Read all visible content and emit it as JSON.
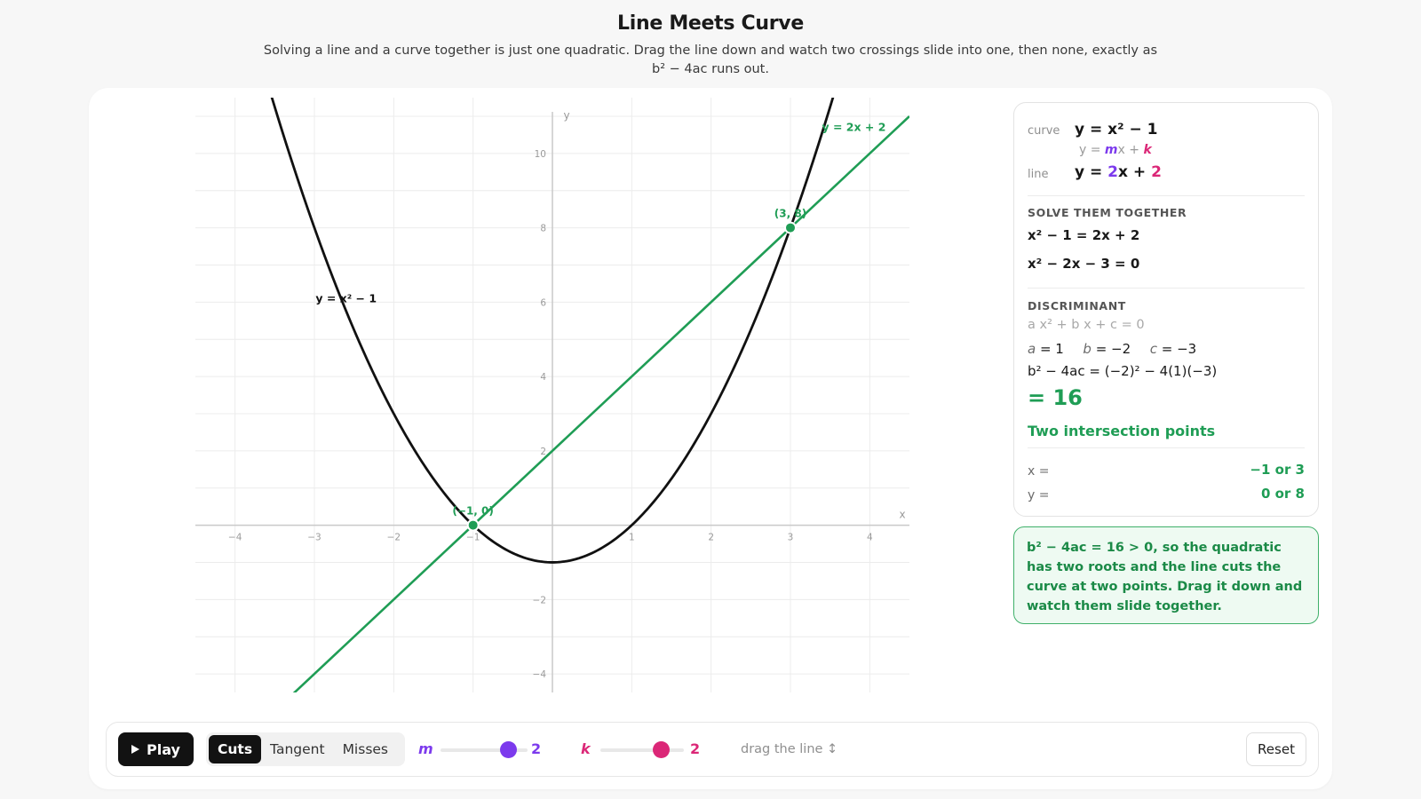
{
  "header": {
    "title": "Line Meets Curve",
    "subtitle": "Solving a line and a curve together is just one quadratic. Drag the line down and watch two crossings slide into one, then none, exactly as b² − 4ac runs out."
  },
  "colors": {
    "curve": "#111111",
    "line": "#1f9d55",
    "m_accent": "#7c3aed",
    "k_accent": "#db2777",
    "grid": "#ececec",
    "axis": "#c9c9c9"
  },
  "chart_data": {
    "type": "line",
    "xlabel": "x",
    "ylabel": "y",
    "xlim": [
      -4.5,
      4.5
    ],
    "ylim": [
      -4.5,
      11.5
    ],
    "grid": true,
    "x_ticks": [
      "−4",
      "−3",
      "−2",
      "−1",
      "1",
      "2",
      "3",
      "4"
    ],
    "y_ticks": [
      "−4",
      "−2",
      "2",
      "4",
      "6",
      "8",
      "10"
    ],
    "series": [
      {
        "name": "y = x² − 1",
        "kind": "quadratic",
        "a": 1,
        "b": 0,
        "c": -1,
        "color": "#111111",
        "label_x": -2.6,
        "label_y": 6
      },
      {
        "name": "y = 2x + 2",
        "kind": "linear",
        "m": 2,
        "k": 2,
        "color": "#1f9d55",
        "label_x": 3.8,
        "label_y": 10.6
      }
    ],
    "points": [
      {
        "label": "(−1, 0)",
        "x": -1,
        "y": 0
      },
      {
        "label": "(3, 8)",
        "x": 3,
        "y": 8
      }
    ]
  },
  "panel": {
    "curve_label": "curve",
    "curve_eq": "y = x² − 1",
    "line_template": {
      "y": "y = ",
      "m": "m",
      "x": "x + ",
      "k": "k"
    },
    "line_label": "line",
    "line_eq": {
      "prefix": "y = ",
      "m": "2",
      "mid": "x + ",
      "k": "2"
    },
    "solve_title": "SOLVE THEM TOGETHER",
    "solve_eq1": "x² − 1 = 2x + 2",
    "solve_eq2": "x² − 2x − 3 = 0",
    "disc_title": "DISCRIMINANT",
    "general_form": "a x² + b x + c = 0",
    "coef": {
      "a_name": "a",
      "a_val": " = 1",
      "b_name": "b",
      "b_val": " = −2",
      "c_name": "c",
      "c_val": " = −3"
    },
    "disc_expr": "b² − 4ac = (−2)² − 4(1)(−3)",
    "disc_value": "= 16",
    "verdict": "Two intersection points",
    "x_label": "x =",
    "x_value": "−1 or 3",
    "y_label": "y =",
    "y_value": "0 or 8"
  },
  "note": "b² − 4ac = 16 > 0, so the quadratic has two roots and the line cuts the curve at two points. Drag it down and watch them slide together.",
  "controls": {
    "play_label": "Play",
    "modes": [
      "Cuts",
      "Tangent",
      "Misses"
    ],
    "active_mode": "Cuts",
    "m_label": "m",
    "m_value": "2",
    "m_fraction": 0.78,
    "k_label": "k",
    "k_value": "2",
    "k_fraction": 0.73,
    "hint": "drag the line ↕",
    "reset_label": "Reset"
  }
}
